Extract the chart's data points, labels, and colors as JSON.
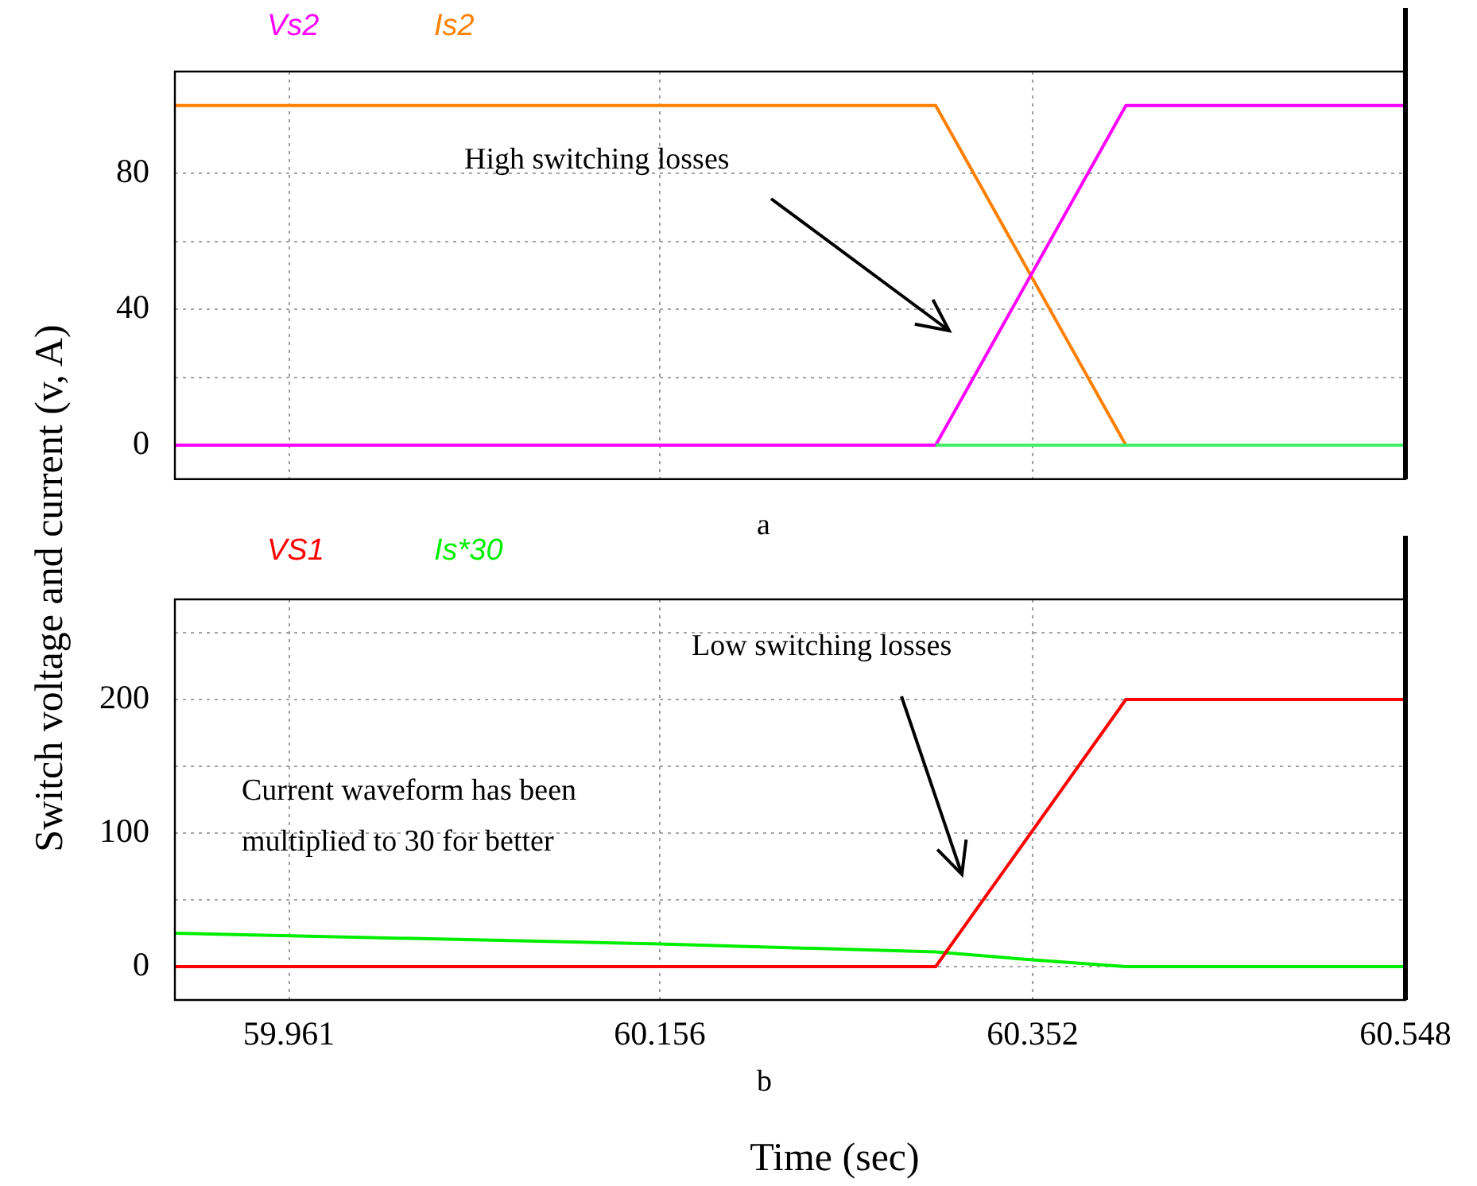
{
  "chart_data": [
    {
      "type": "line",
      "ylabel": "Switch voltage and current (v, A)",
      "xlim": [
        59.901,
        60.548
      ],
      "xticks": [
        59.961,
        60.156,
        60.352,
        60.548
      ],
      "ylim": [
        -10,
        110
      ],
      "yticks": [
        0,
        {
          "value": 20,
          "label": null
        },
        40,
        {
          "value": 60,
          "label": null
        },
        80
      ],
      "tick_labels": "y",
      "grid": true,
      "legend": "top left",
      "annotations": [
        "High switching losses",
        "a"
      ],
      "series": [
        {
          "color": "#44ee66",
          "x": [
            60.301,
            60.548
          ],
          "values": [
            0,
            0
          ]
        },
        {
          "name": "Vs2",
          "color": "#ff00ff",
          "x": [
            59.901,
            60.301,
            60.401,
            60.548
          ],
          "values": [
            0,
            0,
            100,
            100
          ]
        },
        {
          "name": "Is2",
          "color": "#ff8000",
          "x": [
            59.901,
            60.301,
            60.401,
            60.548
          ],
          "values": [
            100,
            100,
            0,
            0
          ]
        }
      ]
    },
    {
      "type": "line",
      "xlabel": "Time (sec)",
      "xlim": [
        59.901,
        60.548
      ],
      "xticks": [
        59.961,
        60.156,
        60.352,
        60.548
      ],
      "ylim": [
        -25,
        275
      ],
      "yticks": [
        0,
        {
          "value": 50,
          "label": null
        },
        100,
        {
          "value": 150,
          "label": null
        },
        200,
        {
          "value": 250,
          "label": null
        }
      ],
      "grid": true,
      "legend": "top left",
      "annotations": [
        "Low switching losses",
        "Current waveform has been multiplied to 30 for better",
        "b"
      ],
      "series": [
        {
          "name": "VS1",
          "color": "#ff0000",
          "x": [
            59.901,
            60.301,
            60.401,
            60.548
          ],
          "values": [
            0,
            0,
            200,
            200
          ]
        },
        {
          "name": "Is*30",
          "color": "#00ee00",
          "x": [
            59.901,
            60.156,
            60.301,
            60.352,
            60.401,
            60.548
          ],
          "values": [
            25,
            17,
            11,
            5,
            0,
            0
          ]
        }
      ]
    }
  ]
}
